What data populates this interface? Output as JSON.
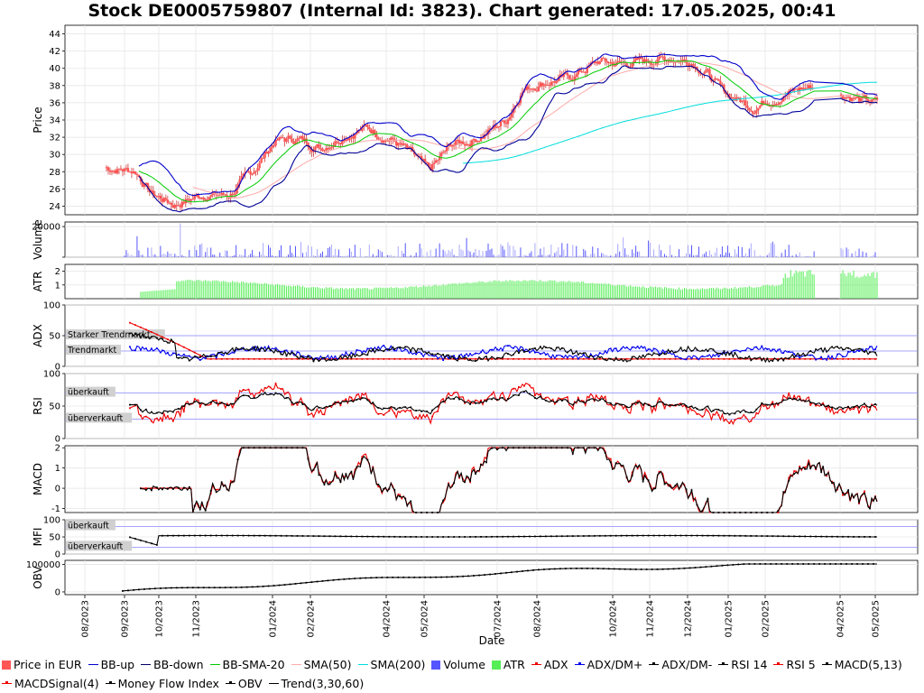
{
  "title": "Stock DE0005759807 (Internal Id: 3823). Chart generated: 17.05.2025, 00:41",
  "chart_data": {
    "type": "line",
    "xlabel": "Date",
    "x_ticks": [
      "08/2023",
      "09/2023",
      "10/2023",
      "11/2023",
      "01/2024",
      "02/2024",
      "04/2024",
      "05/2024",
      "07/2024",
      "08/2024",
      "10/2024",
      "11/2024",
      "12/2024",
      "01/2025",
      "02/2025",
      "04/2025",
      "05/2025"
    ],
    "panels": [
      {
        "id": "price",
        "ylabel": "Price",
        "ylim": [
          23,
          45
        ],
        "ticks": [
          24,
          26,
          28,
          30,
          32,
          34,
          36,
          38,
          40,
          42,
          44
        ],
        "series": [
          {
            "name": "Price in EUR",
            "color": "#ff5555",
            "anchors": [
              [
                0.0,
                28.5
              ],
              [
                0.04,
                28.1
              ],
              [
                0.06,
                25.5
              ],
              [
                0.09,
                24.2
              ],
              [
                0.13,
                25.4
              ],
              [
                0.16,
                25.2
              ],
              [
                0.19,
                27.8
              ],
              [
                0.22,
                31.6
              ],
              [
                0.25,
                31.8
              ],
              [
                0.28,
                30.8
              ],
              [
                0.31,
                32.3
              ],
              [
                0.34,
                33.1
              ],
              [
                0.37,
                31.8
              ],
              [
                0.39,
                30.6
              ],
              [
                0.42,
                28.0
              ],
              [
                0.45,
                31.2
              ],
              [
                0.47,
                31.5
              ],
              [
                0.49,
                32.3
              ],
              [
                0.52,
                34.0
              ],
              [
                0.54,
                37.5
              ],
              [
                0.56,
                38.2
              ],
              [
                0.58,
                38.6
              ],
              [
                0.6,
                38.8
              ],
              [
                0.62,
                39.8
              ],
              [
                0.64,
                40.8
              ],
              [
                0.67,
                40.5
              ],
              [
                0.7,
                40.8
              ],
              [
                0.73,
                41.2
              ],
              [
                0.76,
                40.9
              ],
              [
                0.78,
                39.5
              ],
              [
                0.8,
                37.3
              ],
              [
                0.82,
                36.4
              ],
              [
                0.84,
                35.5
              ],
              [
                0.86,
                36.4
              ],
              [
                0.88,
                36.9
              ],
              [
                0.9,
                37.6
              ],
              [
                0.92,
                37.9
              ],
              [
                0.94,
                37.4
              ],
              [
                0.96,
                37.0
              ],
              [
                0.98,
                36.2
              ],
              [
                1.0,
                36.0
              ]
            ]
          },
          {
            "name": "BB-up",
            "color": "#0000cc"
          },
          {
            "name": "BB-down",
            "color": "#0000cc"
          },
          {
            "name": "BB-SMA-20",
            "color": "#00cc00"
          },
          {
            "name": "SMA(50)",
            "color": "#ffaaaa"
          },
          {
            "name": "SMA(200)",
            "color": "#00dddd"
          }
        ]
      },
      {
        "id": "volume",
        "ylabel": "Volume",
        "ylim": [
          0,
          23000
        ],
        "ticks": [
          0,
          20000
        ],
        "tick_labels": [
          "",
          "20000"
        ],
        "series": [
          {
            "name": "Volume",
            "color": "#5555ff"
          }
        ]
      },
      {
        "id": "atr",
        "ylabel": "ATR",
        "ylim": [
          0,
          2.5
        ],
        "ticks": [
          1,
          2
        ],
        "series": [
          {
            "name": "ATR",
            "color": "#55ee55"
          }
        ]
      },
      {
        "id": "adx",
        "ylabel": "ADX",
        "ylim": [
          0,
          100
        ],
        "ticks": [
          0,
          50,
          100
        ],
        "levels": [
          {
            "value": 50,
            "label": "Starker Trendmarkt"
          },
          {
            "value": 25,
            "label": "Trendmarkt"
          }
        ],
        "series": [
          {
            "name": "ADX",
            "color": "#ee0000"
          },
          {
            "name": "ADX/DM+",
            "color": "#0000ee"
          },
          {
            "name": "ADX/DM-",
            "color": "#000000"
          }
        ]
      },
      {
        "id": "rsi",
        "ylabel": "RSI",
        "ylim": [
          0,
          100
        ],
        "ticks": [
          0,
          50,
          100
        ],
        "levels": [
          {
            "value": 70,
            "label": "überkauft"
          },
          {
            "value": 30,
            "label": "überverkauft"
          }
        ],
        "series": [
          {
            "name": "RSI 14",
            "color": "#000000"
          },
          {
            "name": "RSI 5",
            "color": "#ee0000"
          }
        ]
      },
      {
        "id": "macd",
        "ylabel": "MACD",
        "ylim": [
          -1.2,
          2.1
        ],
        "ticks": [
          -1,
          0,
          1,
          2
        ],
        "series": [
          {
            "name": "MACD(5,13)",
            "color": "#000000"
          },
          {
            "name": "MACDSignal(4)",
            "color": "#ee0000"
          }
        ]
      },
      {
        "id": "mfi",
        "ylabel": "MFI",
        "ylim": [
          0,
          100
        ],
        "ticks": [
          0,
          50,
          100
        ],
        "levels": [
          {
            "value": 80,
            "label": "überkauft"
          },
          {
            "value": 20,
            "label": "überverkauft"
          }
        ],
        "series": [
          {
            "name": "Money Flow Index",
            "color": "#000000"
          }
        ]
      },
      {
        "id": "obv",
        "ylabel": "OBV",
        "ylim": [
          -10000,
          115000
        ],
        "ticks": [
          0,
          100000
        ],
        "series": [
          {
            "name": "OBV",
            "color": "#000000"
          }
        ]
      }
    ]
  },
  "legend": [
    {
      "label": "Price in EUR",
      "color": "#ff5555",
      "kind": "box"
    },
    {
      "label": "BB-up",
      "color": "#0000cc",
      "kind": "line"
    },
    {
      "label": "BB-down",
      "color": "#000066",
      "kind": "line"
    },
    {
      "label": "BB-SMA-20",
      "color": "#00cc00",
      "kind": "line"
    },
    {
      "label": "SMA(50)",
      "color": "#ffaaaa",
      "kind": "line"
    },
    {
      "label": "SMA(200)",
      "color": "#00dddd",
      "kind": "line"
    },
    {
      "label": "Volume",
      "color": "#5555ff",
      "kind": "box"
    },
    {
      "label": "ATR",
      "color": "#55ee55",
      "kind": "box"
    },
    {
      "label": "ADX",
      "color": "#ee0000",
      "kind": "dotline"
    },
    {
      "label": "ADX/DM+",
      "color": "#0000ee",
      "kind": "dotline"
    },
    {
      "label": "ADX/DM-",
      "color": "#000000",
      "kind": "dotline"
    },
    {
      "label": "RSI 14",
      "color": "#000000",
      "kind": "dotline"
    },
    {
      "label": "RSI 5",
      "color": "#ee0000",
      "kind": "dotline"
    },
    {
      "label": "MACD(5,13)",
      "color": "#000000",
      "kind": "dotline"
    },
    {
      "label": "MACDSignal(4)",
      "color": "#ee0000",
      "kind": "dotline"
    },
    {
      "label": "Money Flow Index",
      "color": "#000000",
      "kind": "dotline"
    },
    {
      "label": "OBV",
      "color": "#000000",
      "kind": "dotline"
    },
    {
      "label": "Trend(3,30,60)",
      "color": "#000000",
      "kind": "line"
    }
  ]
}
